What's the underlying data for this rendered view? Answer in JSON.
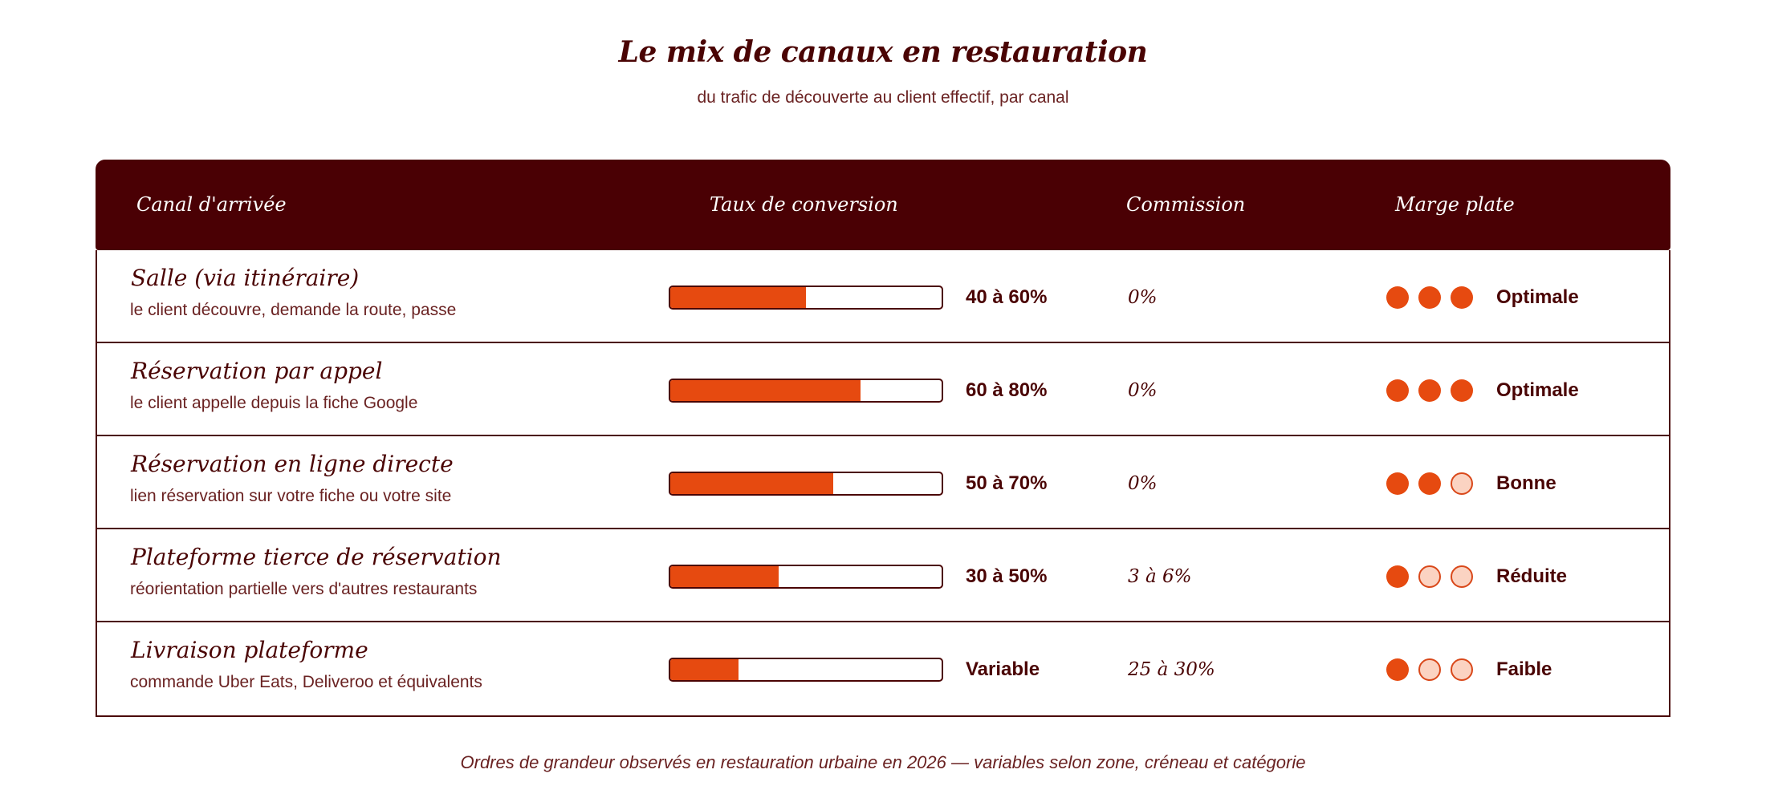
{
  "title": "Le mix de canaux en restauration",
  "subtitle": "du trafic de découverte au client effectif, par canal",
  "headers": {
    "channel": "Canal d'arrivée",
    "conversion": "Taux de conversion",
    "commission": "Commission",
    "margin": "Marge plate"
  },
  "rows": [
    {
      "name": "Salle (via itinéraire)",
      "desc": "le client découvre, demande la route, passe",
      "conversion_fill": 0.5,
      "rate": "40 à 60%",
      "commission": "0%",
      "margin_dots": 3,
      "margin": "Optimale"
    },
    {
      "name": "Réservation par appel",
      "desc": "le client appelle depuis la fiche Google",
      "conversion_fill": 0.7,
      "rate": "60 à 80%",
      "commission": "0%",
      "margin_dots": 3,
      "margin": "Optimale"
    },
    {
      "name": "Réservation en ligne directe",
      "desc": "lien réservation sur votre fiche ou votre site",
      "conversion_fill": 0.6,
      "rate": "50 à 70%",
      "commission": "0%",
      "margin_dots": 2,
      "margin": "Bonne"
    },
    {
      "name": "Plateforme tierce de réservation",
      "desc": "réorientation partielle vers d'autres restaurants",
      "conversion_fill": 0.4,
      "rate": "30 à 50%",
      "commission": "3 à 6%",
      "margin_dots": 1,
      "margin": "Réduite"
    },
    {
      "name": "Livraison plateforme",
      "desc": "commande Uber Eats, Deliveroo et équivalents",
      "conversion_fill": 0.25,
      "rate": "Variable",
      "commission": "25 à 30%",
      "margin_dots": 1,
      "margin": "Faible"
    }
  ],
  "colors": {
    "header_bg": "#4a0004",
    "accent": "#e64a10",
    "dot_empty": "#fbd3c2",
    "text": "#4a0404"
  },
  "footnote": "Ordres de grandeur observés en restauration urbaine en 2026 — variables selon zone, créneau et catégorie"
}
